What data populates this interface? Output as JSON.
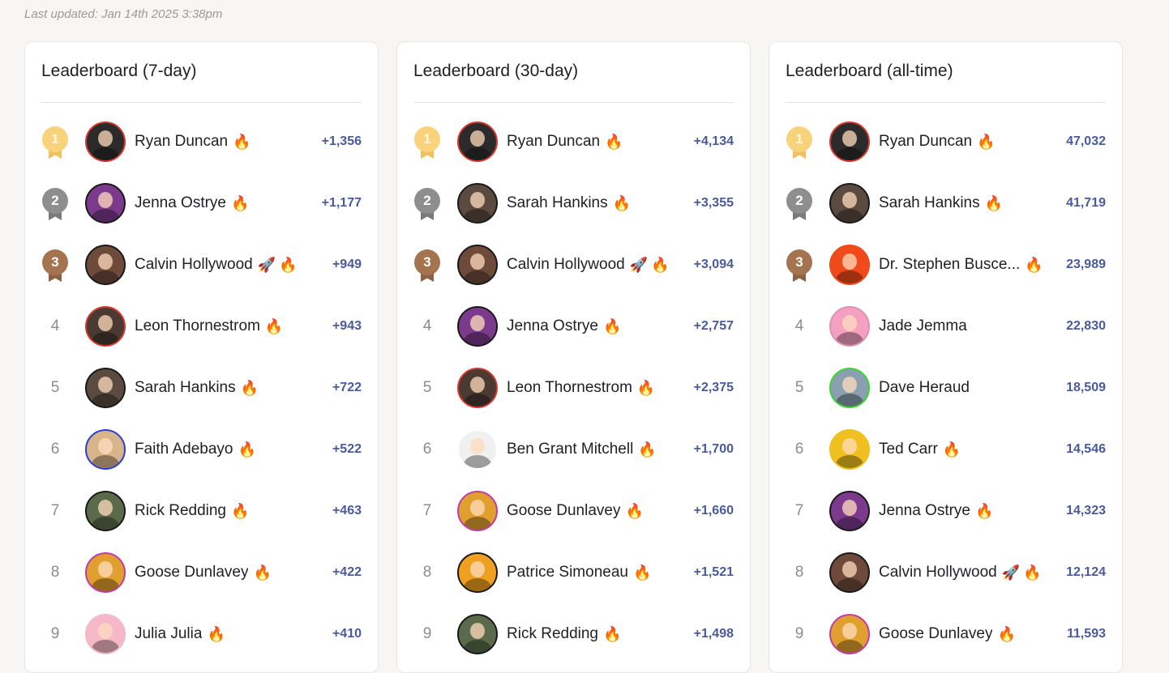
{
  "updated": "Last updated: Jan 14th 2025 3:38pm",
  "boards": [
    {
      "title": "Leaderboard (7-day)",
      "rows": [
        {
          "rank": "1",
          "name": "Ryan Duncan",
          "badges": [
            "🔥"
          ],
          "score": "+1,356",
          "avatar": {
            "bg": "#2b2b2b",
            "ring": "#d63a2f"
          }
        },
        {
          "rank": "2",
          "name": "Jenna Ostrye",
          "badges": [
            "🔥"
          ],
          "score": "+1,177",
          "avatar": {
            "bg": "#7b3a8c",
            "ring": "#1a1a1a"
          }
        },
        {
          "rank": "3",
          "name": "Calvin Hollywood",
          "badges": [
            "🚀",
            "🔥"
          ],
          "score": "+949",
          "avatar": {
            "bg": "#6e4a3a",
            "ring": "#1a1a1a"
          }
        },
        {
          "rank": "4",
          "name": "Leon Thornestrom",
          "badges": [
            "🔥"
          ],
          "score": "+943",
          "avatar": {
            "bg": "#4a3a32",
            "ring": "#d63a2f"
          }
        },
        {
          "rank": "5",
          "name": "Sarah Hankins",
          "badges": [
            "🔥"
          ],
          "score": "+722",
          "avatar": {
            "bg": "#5a4a40",
            "ring": "#1a1a1a"
          }
        },
        {
          "rank": "6",
          "name": "Faith Adebayo",
          "badges": [
            "🔥"
          ],
          "score": "+522",
          "avatar": {
            "bg": "#d8b48a",
            "ring": "#2b3fd6"
          }
        },
        {
          "rank": "7",
          "name": "Rick Redding",
          "badges": [
            "🔥"
          ],
          "score": "+463",
          "avatar": {
            "bg": "#5a6a4a",
            "ring": "#1a1a1a"
          }
        },
        {
          "rank": "8",
          "name": "Goose Dunlavey",
          "badges": [
            "🔥"
          ],
          "score": "+422",
          "avatar": {
            "bg": "#e0a030",
            "ring": "#c23aa8"
          }
        },
        {
          "rank": "9",
          "name": "Julia Julia",
          "badges": [
            "🔥"
          ],
          "score": "+410",
          "avatar": {
            "bg": "#f4b8c8",
            "ring": "#f4b8c8"
          }
        }
      ]
    },
    {
      "title": "Leaderboard (30-day)",
      "rows": [
        {
          "rank": "1",
          "name": "Ryan Duncan",
          "badges": [
            "🔥"
          ],
          "score": "+4,134",
          "avatar": {
            "bg": "#2b2b2b",
            "ring": "#d63a2f"
          }
        },
        {
          "rank": "2",
          "name": "Sarah Hankins",
          "badges": [
            "🔥"
          ],
          "score": "+3,355",
          "avatar": {
            "bg": "#5a4a40",
            "ring": "#1a1a1a"
          }
        },
        {
          "rank": "3",
          "name": "Calvin Hollywood",
          "badges": [
            "🚀",
            "🔥"
          ],
          "score": "+3,094",
          "avatar": {
            "bg": "#6e4a3a",
            "ring": "#1a1a1a"
          }
        },
        {
          "rank": "4",
          "name": "Jenna Ostrye",
          "badges": [
            "🔥"
          ],
          "score": "+2,757",
          "avatar": {
            "bg": "#7b3a8c",
            "ring": "#1a1a1a"
          }
        },
        {
          "rank": "5",
          "name": "Leon Thornestrom",
          "badges": [
            "🔥"
          ],
          "score": "+2,375",
          "avatar": {
            "bg": "#4a3a32",
            "ring": "#d63a2f"
          }
        },
        {
          "rank": "6",
          "name": "Ben Grant Mitchell",
          "badges": [
            "🔥"
          ],
          "score": "+1,700",
          "avatar": {
            "bg": "#f0f0f0",
            "ring": "#ffffff"
          }
        },
        {
          "rank": "7",
          "name": "Goose Dunlavey",
          "badges": [
            "🔥"
          ],
          "score": "+1,660",
          "avatar": {
            "bg": "#e0a030",
            "ring": "#c23aa8"
          }
        },
        {
          "rank": "8",
          "name": "Patrice Simoneau",
          "badges": [
            "🔥"
          ],
          "score": "+1,521",
          "avatar": {
            "bg": "#f0a020",
            "ring": "#1a1a1a"
          }
        },
        {
          "rank": "9",
          "name": "Rick Redding",
          "badges": [
            "🔥"
          ],
          "score": "+1,498",
          "avatar": {
            "bg": "#5a6a4a",
            "ring": "#1a1a1a"
          }
        }
      ]
    },
    {
      "title": "Leaderboard (all-time)",
      "rows": [
        {
          "rank": "1",
          "name": "Ryan Duncan",
          "badges": [
            "🔥"
          ],
          "score": "47,032",
          "avatar": {
            "bg": "#2b2b2b",
            "ring": "#d63a2f"
          }
        },
        {
          "rank": "2",
          "name": "Sarah Hankins",
          "badges": [
            "🔥"
          ],
          "score": "41,719",
          "avatar": {
            "bg": "#5a4a40",
            "ring": "#1a1a1a"
          }
        },
        {
          "rank": "3",
          "name": "Dr. Stephen Busce...",
          "badges": [
            "🔥"
          ],
          "score": "23,989",
          "avatar": {
            "bg": "#f04a1a",
            "ring": "#f04a1a"
          }
        },
        {
          "rank": "4",
          "name": "Jade Jemma",
          "badges": [],
          "score": "22,830",
          "avatar": {
            "bg": "#f4a0c0",
            "ring": "#e090b0"
          }
        },
        {
          "rank": "5",
          "name": "Dave Heraud",
          "badges": [],
          "score": "18,509",
          "avatar": {
            "bg": "#8aa0b0",
            "ring": "#3ad62f"
          }
        },
        {
          "rank": "6",
          "name": "Ted Carr",
          "badges": [
            "🔥"
          ],
          "score": "14,546",
          "avatar": {
            "bg": "#f0c020",
            "ring": "#f0c020"
          }
        },
        {
          "rank": "7",
          "name": "Jenna Ostrye",
          "badges": [
            "🔥"
          ],
          "score": "14,323",
          "avatar": {
            "bg": "#7b3a8c",
            "ring": "#1a1a1a"
          }
        },
        {
          "rank": "8",
          "name": "Calvin Hollywood",
          "badges": [
            "🚀",
            "🔥"
          ],
          "score": "12,124",
          "avatar": {
            "bg": "#6e4a3a",
            "ring": "#1a1a1a"
          }
        },
        {
          "rank": "9",
          "name": "Goose Dunlavey",
          "badges": [
            "🔥"
          ],
          "score": "11,593",
          "avatar": {
            "bg": "#e0a030",
            "ring": "#c23aa8"
          }
        }
      ]
    }
  ]
}
